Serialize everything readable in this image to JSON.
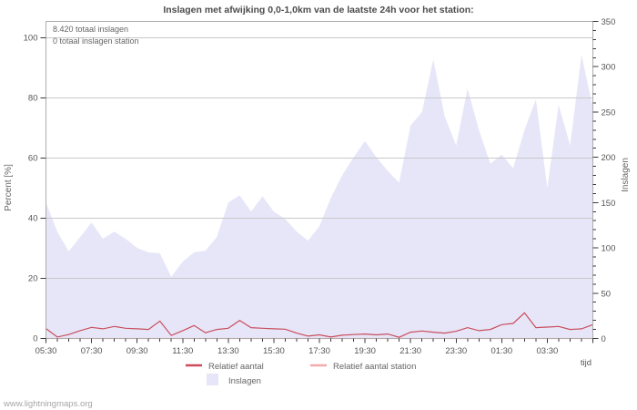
{
  "title": "Inslagen met afwijking 0,0-1,0km van de laatste 24h voor het station:",
  "annotations": {
    "total": "8.420 totaal inslagen",
    "station": "0 totaal inslagen station"
  },
  "watermark": "www.lightningmaps.org",
  "axes": {
    "left": {
      "label": "Percent [%]",
      "ticks": [
        0,
        20,
        40,
        60,
        80,
        100
      ],
      "range": [
        0,
        100
      ]
    },
    "right": {
      "label": "Inslagen",
      "major_ticks": [
        0,
        50,
        100,
        150,
        200,
        250,
        300,
        350
      ],
      "minor_step": 10,
      "range": [
        0,
        350
      ]
    },
    "x": {
      "title": "tijd",
      "tick_labels": [
        "05:30",
        "07:30",
        "09:30",
        "11:30",
        "13:30",
        "15:30",
        "17:30",
        "19:30",
        "21:30",
        "23:30",
        "01:30",
        "03:30"
      ]
    }
  },
  "legend": {
    "items": [
      {
        "label": "Relatief aantal",
        "type": "line",
        "color": "#ca4e5c"
      },
      {
        "label": "Relatief aantal station",
        "type": "line",
        "color": "#f4a9ae"
      },
      {
        "label": "Inslagen",
        "type": "area",
        "color": "#e6e6f8"
      }
    ]
  },
  "colors": {
    "area": "#e6e6f8",
    "line": "#ca4e5c",
    "line_station": "#f4a9ae",
    "grid": "#c9c9c9",
    "border": "#adadad",
    "tick": "#3a3a3a"
  },
  "chart_data": {
    "type": "area",
    "title": "Inslagen met afwijking 0,0-1,0km van de laatste 24h voor het station:",
    "xlabel": "tijd",
    "ylabel_left": "Percent [%]",
    "ylabel_right": "Inslagen",
    "ylim_left": [
      0,
      100
    ],
    "ylim_right": [
      0,
      350
    ],
    "grid": true,
    "legend_position": "bottom",
    "x": [
      "05:30",
      "06:00",
      "06:30",
      "07:00",
      "07:30",
      "08:00",
      "08:30",
      "09:00",
      "09:30",
      "10:00",
      "10:30",
      "11:00",
      "11:30",
      "12:00",
      "12:30",
      "13:00",
      "13:30",
      "14:00",
      "14:30",
      "15:00",
      "15:30",
      "16:00",
      "16:30",
      "17:00",
      "17:30",
      "18:00",
      "18:30",
      "19:00",
      "19:30",
      "20:00",
      "20:30",
      "21:00",
      "21:30",
      "22:00",
      "22:30",
      "23:00",
      "23:30",
      "00:00",
      "00:30",
      "01:00",
      "01:30",
      "02:00",
      "02:30",
      "03:00",
      "03:30",
      "04:00",
      "04:30",
      "05:00",
      "05:30"
    ],
    "series": [
      {
        "name": "Inslagen",
        "type": "area",
        "axis": "right",
        "color": "#e6e6f8",
        "values": [
          150,
          118,
          96,
          112,
          128,
          110,
          118,
          110,
          100,
          95,
          94,
          68,
          85,
          95,
          97,
          112,
          150,
          158,
          140,
          157,
          140,
          132,
          118,
          108,
          124,
          155,
          180,
          200,
          218,
          200,
          185,
          172,
          235,
          250,
          308,
          245,
          213,
          276,
          230,
          193,
          203,
          188,
          230,
          264,
          166,
          258,
          213,
          313,
          255
        ]
      },
      {
        "name": "Relatief aantal",
        "type": "line",
        "axis": "left",
        "color": "#ca4e5c",
        "values": [
          3.3,
          0.5,
          1.3,
          2.6,
          3.7,
          3.2,
          4.0,
          3.4,
          3.2,
          3.0,
          5.8,
          1.0,
          2.6,
          4.3,
          1.9,
          3.0,
          3.4,
          6.0,
          3.6,
          3.4,
          3.2,
          3.1,
          1.8,
          0.8,
          1.2,
          0.5,
          1.1,
          1.3,
          1.5,
          1.2,
          1.5,
          0.4,
          2.1,
          2.5,
          2.1,
          1.8,
          2.4,
          3.6,
          2.6,
          3.0,
          4.6,
          5.0,
          8.5,
          3.6,
          3.8,
          4.0,
          3.0,
          3.2,
          4.6
        ]
      },
      {
        "name": "Relatief aantal station",
        "type": "line",
        "axis": "left",
        "color": "#f4a9ae",
        "values": [
          0,
          0,
          0,
          0,
          0,
          0,
          0,
          0,
          0,
          0,
          0,
          0,
          0,
          0,
          0,
          0,
          0,
          0,
          0,
          0,
          0,
          0,
          0,
          0,
          0,
          0,
          0,
          0,
          0,
          0,
          0,
          0,
          0,
          0,
          0,
          0,
          0,
          0,
          0,
          0,
          0,
          0,
          0,
          0,
          0,
          0,
          0,
          0,
          0
        ]
      }
    ]
  }
}
